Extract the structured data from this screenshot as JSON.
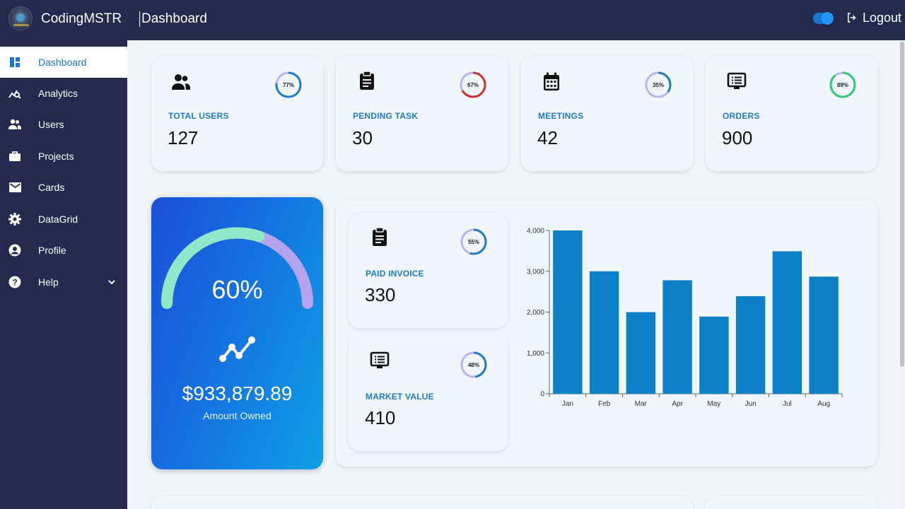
{
  "app": {
    "brand": "CodingMSTR",
    "page_title": "Dashboard",
    "logout_label": "Logout"
  },
  "sidebar": {
    "items": [
      {
        "label": "Dashboard",
        "icon": "dashboard-icon",
        "active": true
      },
      {
        "label": "Analytics",
        "icon": "analytics-icon"
      },
      {
        "label": "Users",
        "icon": "users-icon"
      },
      {
        "label": "Projects",
        "icon": "briefcase-icon"
      },
      {
        "label": "Cards",
        "icon": "mail-icon"
      },
      {
        "label": "DataGrid",
        "icon": "gear-icon"
      },
      {
        "label": "Profile",
        "icon": "profile-icon"
      },
      {
        "label": "Help",
        "icon": "help-icon"
      }
    ]
  },
  "stats": [
    {
      "label": "TOTAL USERS",
      "value": "127",
      "percent": 77,
      "percent_label": "77%",
      "ring_color": "#1f7bc2",
      "icon": "users-icon"
    },
    {
      "label": "PENDING TASK",
      "value": "30",
      "percent": 67,
      "percent_label": "67%",
      "ring_color": "#d32f2f",
      "icon": "clipboard-icon"
    },
    {
      "label": "MEETINGS",
      "value": "42",
      "percent": 35,
      "percent_label": "35%",
      "ring_color": "#1f7bc2",
      "icon": "calendar-icon"
    },
    {
      "label": "ORDERS",
      "value": "900",
      "percent": 89,
      "percent_label": "89%",
      "ring_color": "#2ecc71",
      "icon": "list-alt-icon"
    }
  ],
  "side_stats": [
    {
      "label": "PAID INVOICE",
      "value": "330",
      "percent": 55,
      "percent_label": "55%",
      "ring_color": "#1f7bc2",
      "icon": "clipboard-icon"
    },
    {
      "label": "MARKET VALUE",
      "value": "410",
      "percent": 48,
      "percent_label": "48%",
      "ring_color": "#1f7bc2",
      "icon": "list-alt-icon"
    }
  ],
  "gauge": {
    "percent": 60,
    "percent_label": "60%",
    "amount": "$933,879.89",
    "amount_label": "Amount Owned",
    "fill_color": "#8fe8c8",
    "track_color": "#b6a3ee"
  },
  "colors": {
    "accent": "#1f7bc2",
    "bar": "#0b7fc7",
    "nav_bg": "#232a4e",
    "ring_track": "#b9b3ee"
  },
  "chart_data": {
    "type": "bar",
    "categories": [
      "Jan",
      "Feb",
      "Mar",
      "Apr",
      "May",
      "Jun",
      "Jul",
      "Aug"
    ],
    "values": [
      4000,
      3000,
      2000,
      2780,
      1890,
      2390,
      3490,
      2870
    ],
    "ylim": [
      0,
      4000
    ],
    "yticks": [
      0,
      1000,
      2000,
      3000,
      4000
    ],
    "ytick_labels": [
      "0",
      "1,000",
      "2,000",
      "3,000",
      "4,000"
    ],
    "grid": false,
    "title": "",
    "xlabel": "",
    "ylabel": ""
  }
}
